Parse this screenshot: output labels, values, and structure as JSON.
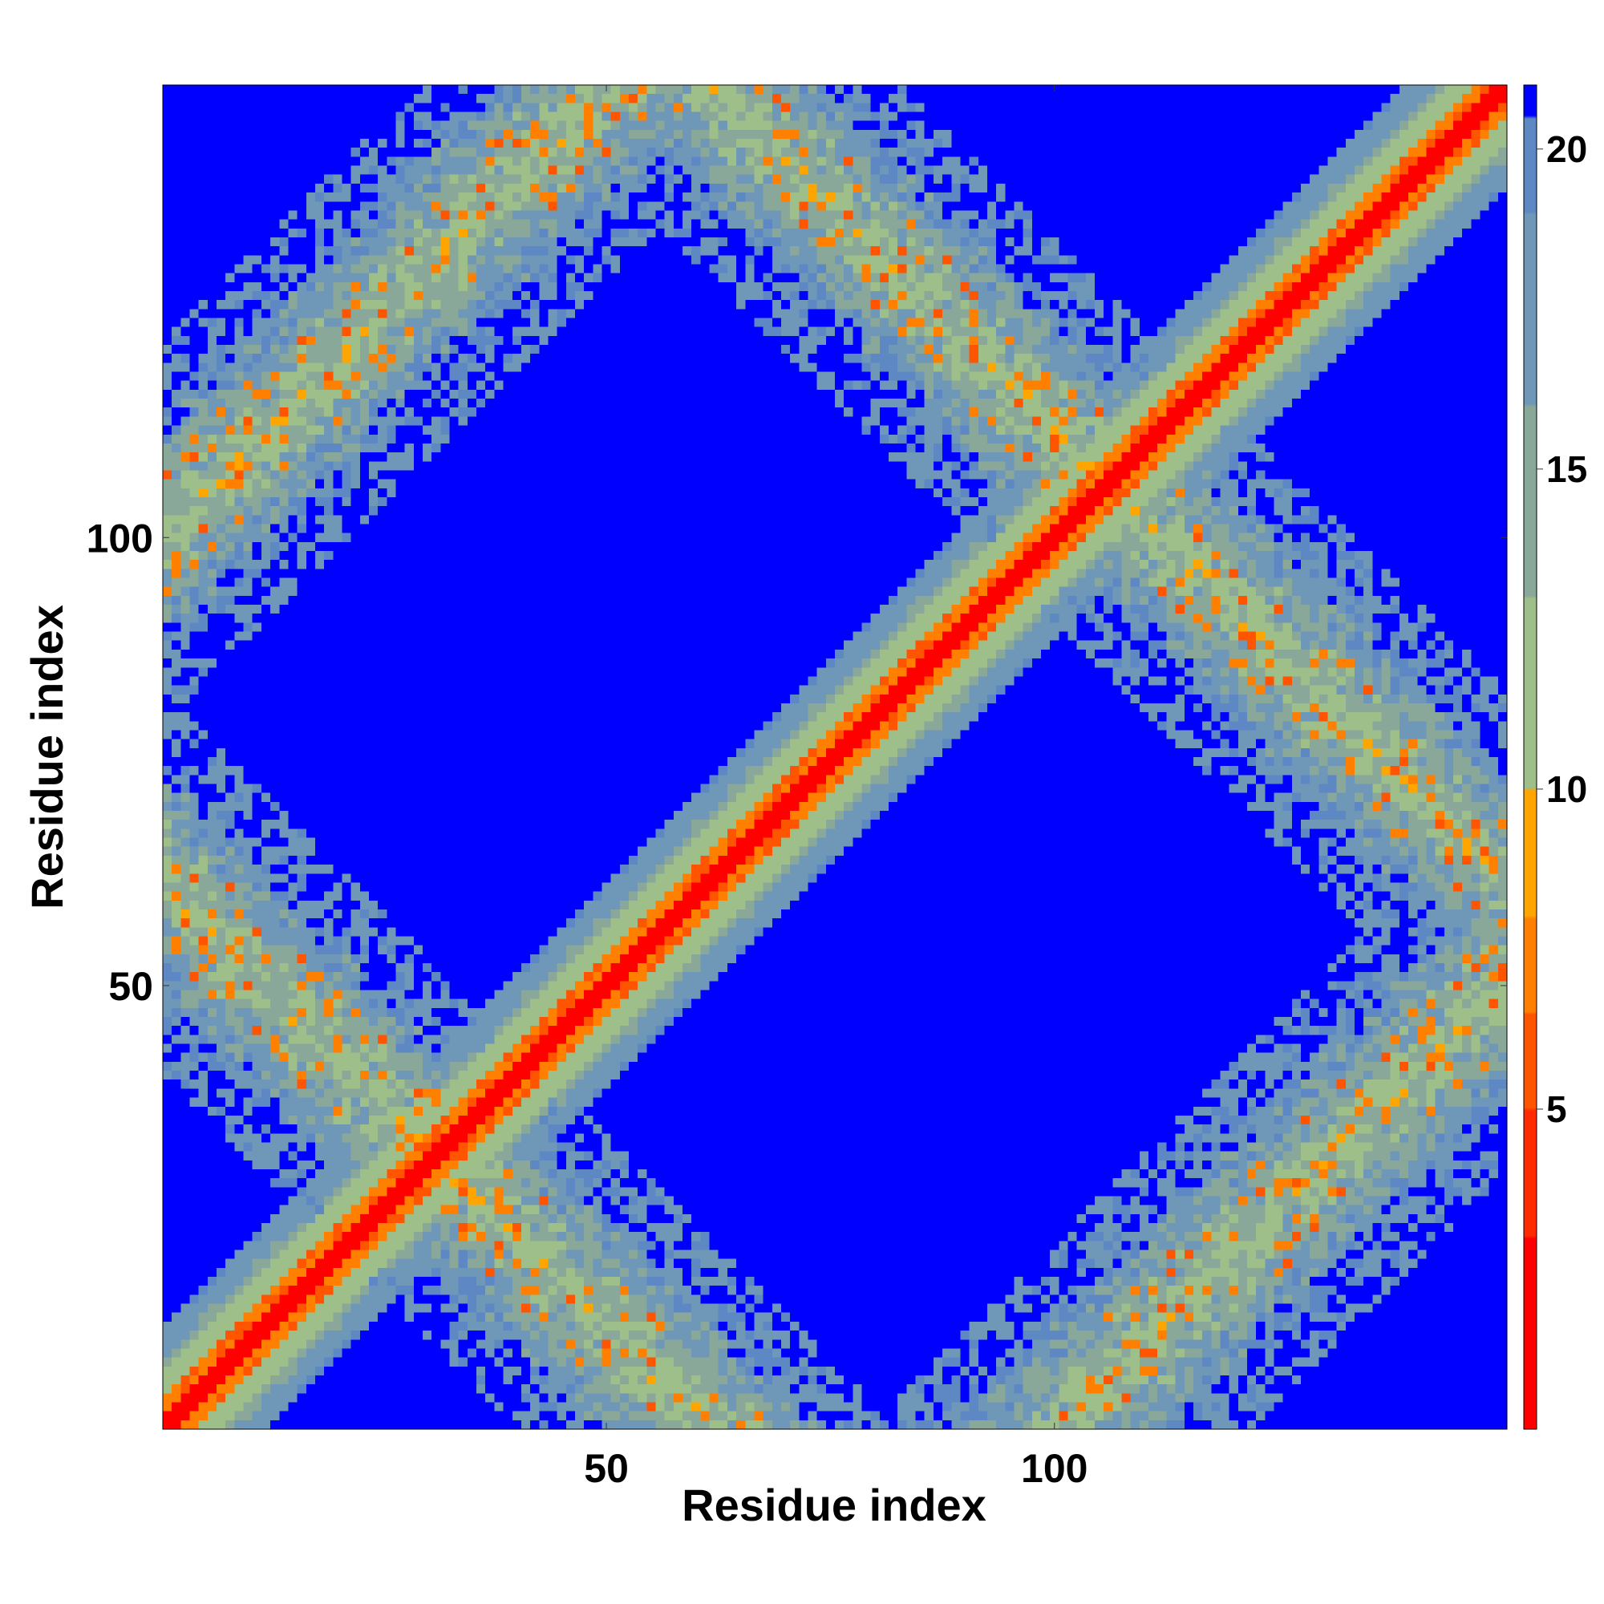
{
  "chart_data": {
    "type": "heatmap",
    "title": "",
    "xlabel": "Residue index",
    "ylabel": "Residue index",
    "n_residues": 150,
    "xlim": [
      1,
      150
    ],
    "ylim": [
      1,
      150
    ],
    "x_ticks": [
      50,
      100
    ],
    "y_ticks": [
      50,
      100
    ],
    "colorbar": {
      "range": [
        0,
        21
      ],
      "ticks": [
        5,
        10,
        15,
        20
      ],
      "colors": [
        "#ff0000",
        "#ff2a00",
        "#ff5500",
        "#ff8000",
        "#ffa500",
        "#9ebe8a",
        "#8aa89a",
        "#6f97b8",
        "#5e88c4",
        "#0000ff"
      ],
      "stops": [
        0,
        3,
        5,
        6.5,
        8,
        10,
        13,
        16,
        19,
        20.5
      ]
    },
    "background_color": "#0000ff",
    "bands": [
      {
        "description": "main diagonal",
        "relation": "i-j",
        "offset": 0
      },
      {
        "description": "anti-diagonal crossing",
        "relation": "i+j",
        "offset": 0
      }
    ]
  }
}
